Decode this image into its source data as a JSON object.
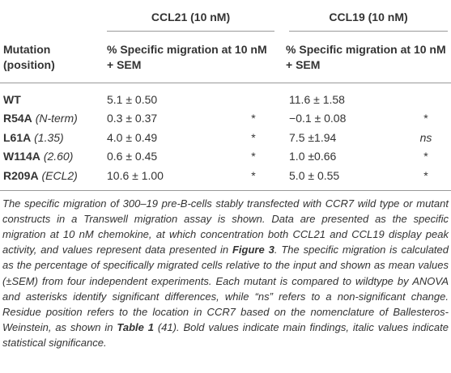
{
  "table": {
    "groups": [
      "CCL21 (10 nM)",
      "CCL19 (10 nM)"
    ],
    "columns": [
      "Mutation (position)",
      "% Specific migration at 10 nM + SEM",
      "% Specific migration at 10 nM + SEM"
    ],
    "rows": [
      {
        "mutation": "WT",
        "ccl21": "5.1 ± 0.50",
        "ccl19": "11.6 ± 1.58"
      },
      {
        "mutation": "R54A",
        "position": "(N-term)",
        "ccl21": "0.3 ± 0.37",
        "ccl21_sig": "*",
        "ccl19": "−0.1 ± 0.08",
        "ccl19_sig": "*"
      },
      {
        "mutation": "L61A",
        "position": "(1.35)",
        "ccl21": "4.0 ± 0.49",
        "ccl21_sig": "*",
        "ccl19": "7.5 ±1.94",
        "ccl19_sig": "ns"
      },
      {
        "mutation": "W114A",
        "position": "(2.60)",
        "ccl21": "0.6 ± 0.45",
        "ccl21_sig": "*",
        "ccl19": "1.0 ±0.66",
        "ccl19_sig": "*"
      },
      {
        "mutation": "R209A",
        "position": "(ECL2)",
        "ccl21": "10.6 ± 1.00",
        "ccl21_sig": "*",
        "ccl19": "5.0 ± 0.55",
        "ccl19_sig": "*"
      }
    ]
  },
  "caption": [
    {
      "text": "The specific migration of 300–19 pre-B-cells stably transfected with CCR7 wild type or mutant constructs in a Transwell migration assay is shown. Data are presented as the specific migration at 10 nM chemokine, at which concentration both CCL21 and CCL19 display peak activity, and values represent data presented in "
    },
    {
      "text": "Figure 3",
      "bold": true
    },
    {
      "text": ". The specific migration is calculated as the percentage of specifically migrated cells relative to the input and shown as mean values (±SEM) from four independent experiments. Each mutant is compared to wildtype by ANOVA and asterisks identify significant differences, while “ns” refers to a non-significant change. Residue position refers to the location in CCR7 based on the nomenclature of Ballesteros-Weinstein, as shown in "
    },
    {
      "text": "Table 1",
      "bold": true
    },
    {
      "text": " (41). Bold values indicate main findings, italic values indicate statistical significance."
    }
  ]
}
